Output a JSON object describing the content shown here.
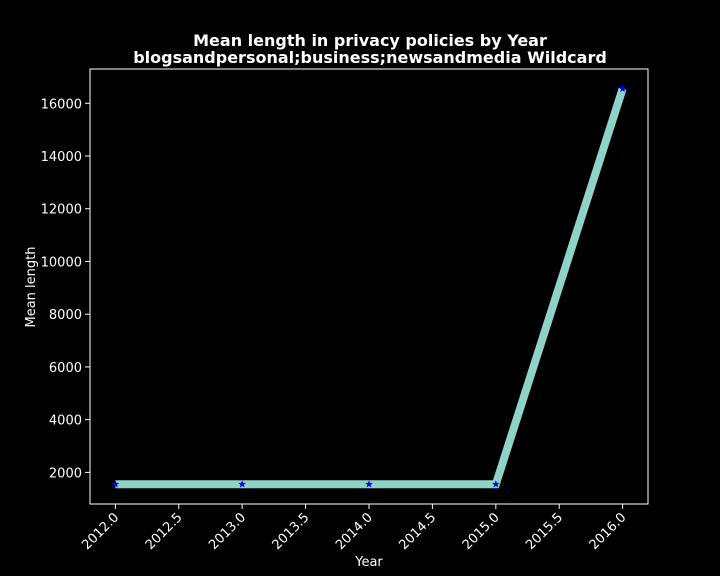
{
  "chart_data": {
    "type": "line",
    "title": "Mean length in privacy policies by Year",
    "subtitle": "blogsandpersonal;business;newsandmedia Wildcard",
    "xlabel": "Year",
    "ylabel": "Mean length",
    "x": [
      2012.0,
      2013.0,
      2014.0,
      2015.0,
      2016.0
    ],
    "series": [
      {
        "values": [
          1550,
          1550,
          1550,
          1550,
          16550
        ]
      }
    ],
    "xlim": [
      2011.8,
      2016.2
    ],
    "ylim": [
      800,
      17300
    ],
    "xticks": [
      "2012.0",
      "2012.5",
      "2013.0",
      "2013.5",
      "2014.0",
      "2014.5",
      "2015.0",
      "2015.5",
      "2016.0"
    ],
    "yticks": [
      "2000",
      "4000",
      "6000",
      "8000",
      "10000",
      "12000",
      "14000",
      "16000"
    ],
    "grid": false,
    "colors": {
      "background": "#000000",
      "line": "#8dd3c7",
      "marker": "#0000ff",
      "text": "#ffffff"
    }
  }
}
